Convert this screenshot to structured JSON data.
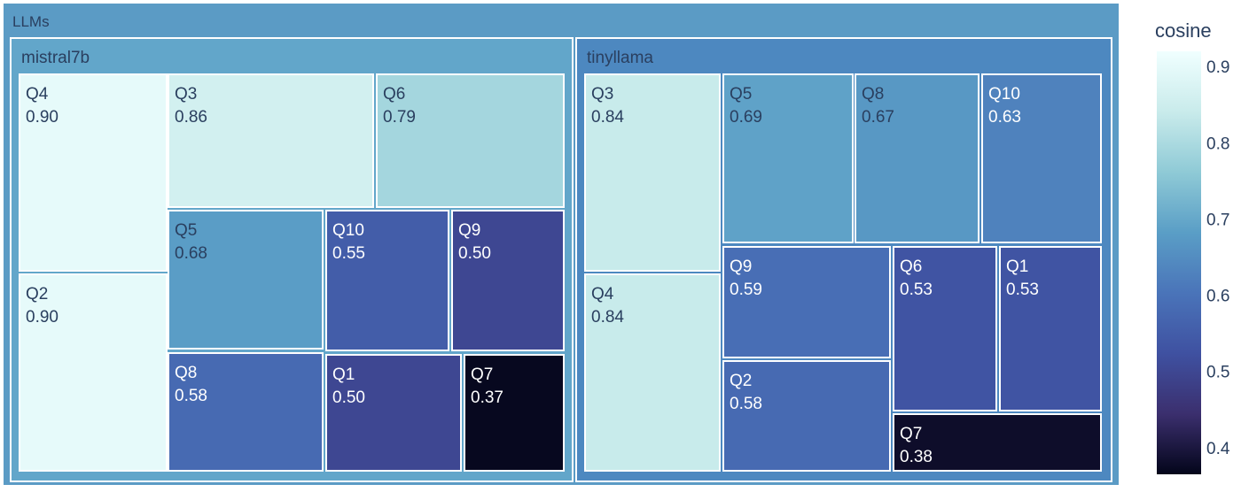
{
  "chart_data": {
    "type": "treemap",
    "color_metric": "cosine",
    "root": {
      "label": "LLMs",
      "children": [
        {
          "label": "mistral7b",
          "children": [
            {
              "label": "Q4",
              "value": "0.90"
            },
            {
              "label": "Q2",
              "value": "0.90"
            },
            {
              "label": "Q3",
              "value": "0.86"
            },
            {
              "label": "Q6",
              "value": "0.79"
            },
            {
              "label": "Q5",
              "value": "0.68"
            },
            {
              "label": "Q10",
              "value": "0.55"
            },
            {
              "label": "Q9",
              "value": "0.50"
            },
            {
              "label": "Q8",
              "value": "0.58"
            },
            {
              "label": "Q1",
              "value": "0.50"
            },
            {
              "label": "Q7",
              "value": "0.37"
            }
          ]
        },
        {
          "label": "tinyllama",
          "children": [
            {
              "label": "Q3",
              "value": "0.84"
            },
            {
              "label": "Q4",
              "value": "0.84"
            },
            {
              "label": "Q5",
              "value": "0.69"
            },
            {
              "label": "Q8",
              "value": "0.67"
            },
            {
              "label": "Q10",
              "value": "0.63"
            },
            {
              "label": "Q9",
              "value": "0.59"
            },
            {
              "label": "Q2",
              "value": "0.58"
            },
            {
              "label": "Q6",
              "value": "0.53"
            },
            {
              "label": "Q1",
              "value": "0.53"
            },
            {
              "label": "Q7",
              "value": "0.38"
            }
          ]
        }
      ]
    },
    "colorbar": {
      "title": "cosine",
      "ticks": [
        "0.4",
        "0.5",
        "0.6",
        "0.7",
        "0.8",
        "0.9"
      ],
      "range": [
        0.365,
        0.92
      ],
      "colorscale": [
        "#03051a",
        "#3b2f6e",
        "#3f51a1",
        "#4a74b9",
        "#5a9ec6",
        "#8fcad6",
        "#c9ebeb",
        "#f0ffff"
      ]
    }
  }
}
